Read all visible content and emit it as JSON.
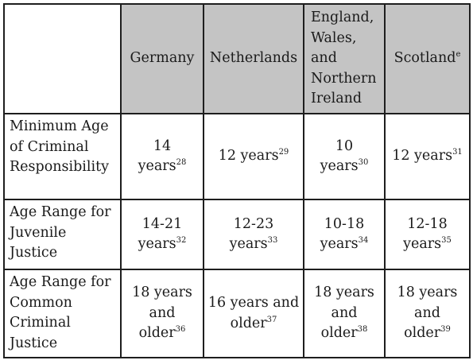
{
  "table": {
    "columns": [
      {
        "label": "Germany",
        "note": ""
      },
      {
        "label": "Netherlands",
        "note": ""
      },
      {
        "label": "England, Wales, and Northern Ireland",
        "note": ""
      },
      {
        "label": "Scotland",
        "note": "e"
      }
    ],
    "rows": [
      {
        "label": "Minimum Age of Criminal Responsibility",
        "cells": [
          {
            "text": "14 years",
            "note": "28"
          },
          {
            "text": "12 years",
            "note": "29"
          },
          {
            "text": "10 years",
            "note": "30"
          },
          {
            "text": "12 years",
            "note": "31"
          }
        ]
      },
      {
        "label": "Age Range for Juvenile Justice",
        "cells": [
          {
            "text": "14-21 years",
            "note": "32"
          },
          {
            "text": "12-23 years",
            "note": "33"
          },
          {
            "text": "10-18 years",
            "note": "34"
          },
          {
            "text": "12-18 years",
            "note": "35"
          }
        ]
      },
      {
        "label": "Age Range for Common Criminal Justice",
        "cells": [
          {
            "text": "18 years and older",
            "note": "36"
          },
          {
            "text": "16 years and older",
            "note": "37"
          },
          {
            "text": "18 years and older",
            "note": "38"
          },
          {
            "text": "18 years and older",
            "note": "39"
          }
        ]
      }
    ]
  }
}
